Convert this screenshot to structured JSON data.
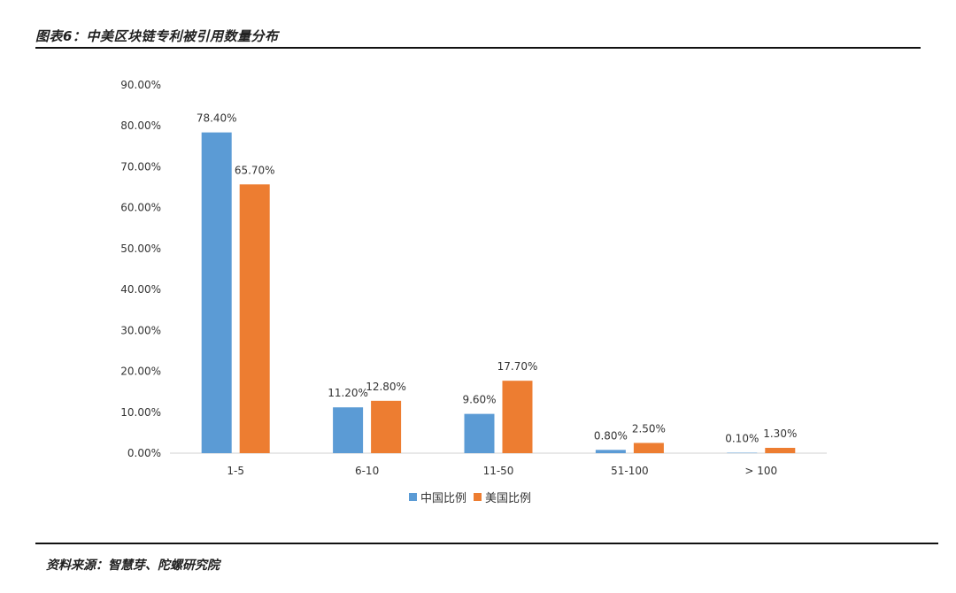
{
  "header": {
    "title": "图表6：中美区块链专利被引用数量分布"
  },
  "footer": {
    "source": "资料来源：智慧芽、陀螺研究院"
  },
  "chart_data": {
    "type": "bar",
    "categories": [
      "1-5",
      "6-10",
      "11-50",
      "51-100",
      "> 100"
    ],
    "series": [
      {
        "name": "中国比例",
        "color": "#5B9BD5",
        "values": [
          78.4,
          11.2,
          9.6,
          0.8,
          0.1
        ],
        "labels": [
          "78.40%",
          "11.20%",
          "9.60%",
          "0.80%",
          "0.10%"
        ]
      },
      {
        "name": "美国比例",
        "color": "#ED7D31",
        "values": [
          65.7,
          12.8,
          17.7,
          2.5,
          1.3
        ],
        "labels": [
          "65.70%",
          "12.80%",
          "17.70%",
          "2.50%",
          "1.30%"
        ]
      }
    ],
    "ylim": [
      0,
      90
    ],
    "yticks": [
      "0.00%",
      "10.00%",
      "20.00%",
      "30.00%",
      "40.00%",
      "50.00%",
      "60.00%",
      "70.00%",
      "80.00%",
      "90.00%"
    ],
    "grid": false,
    "legend_position": "bottom"
  }
}
